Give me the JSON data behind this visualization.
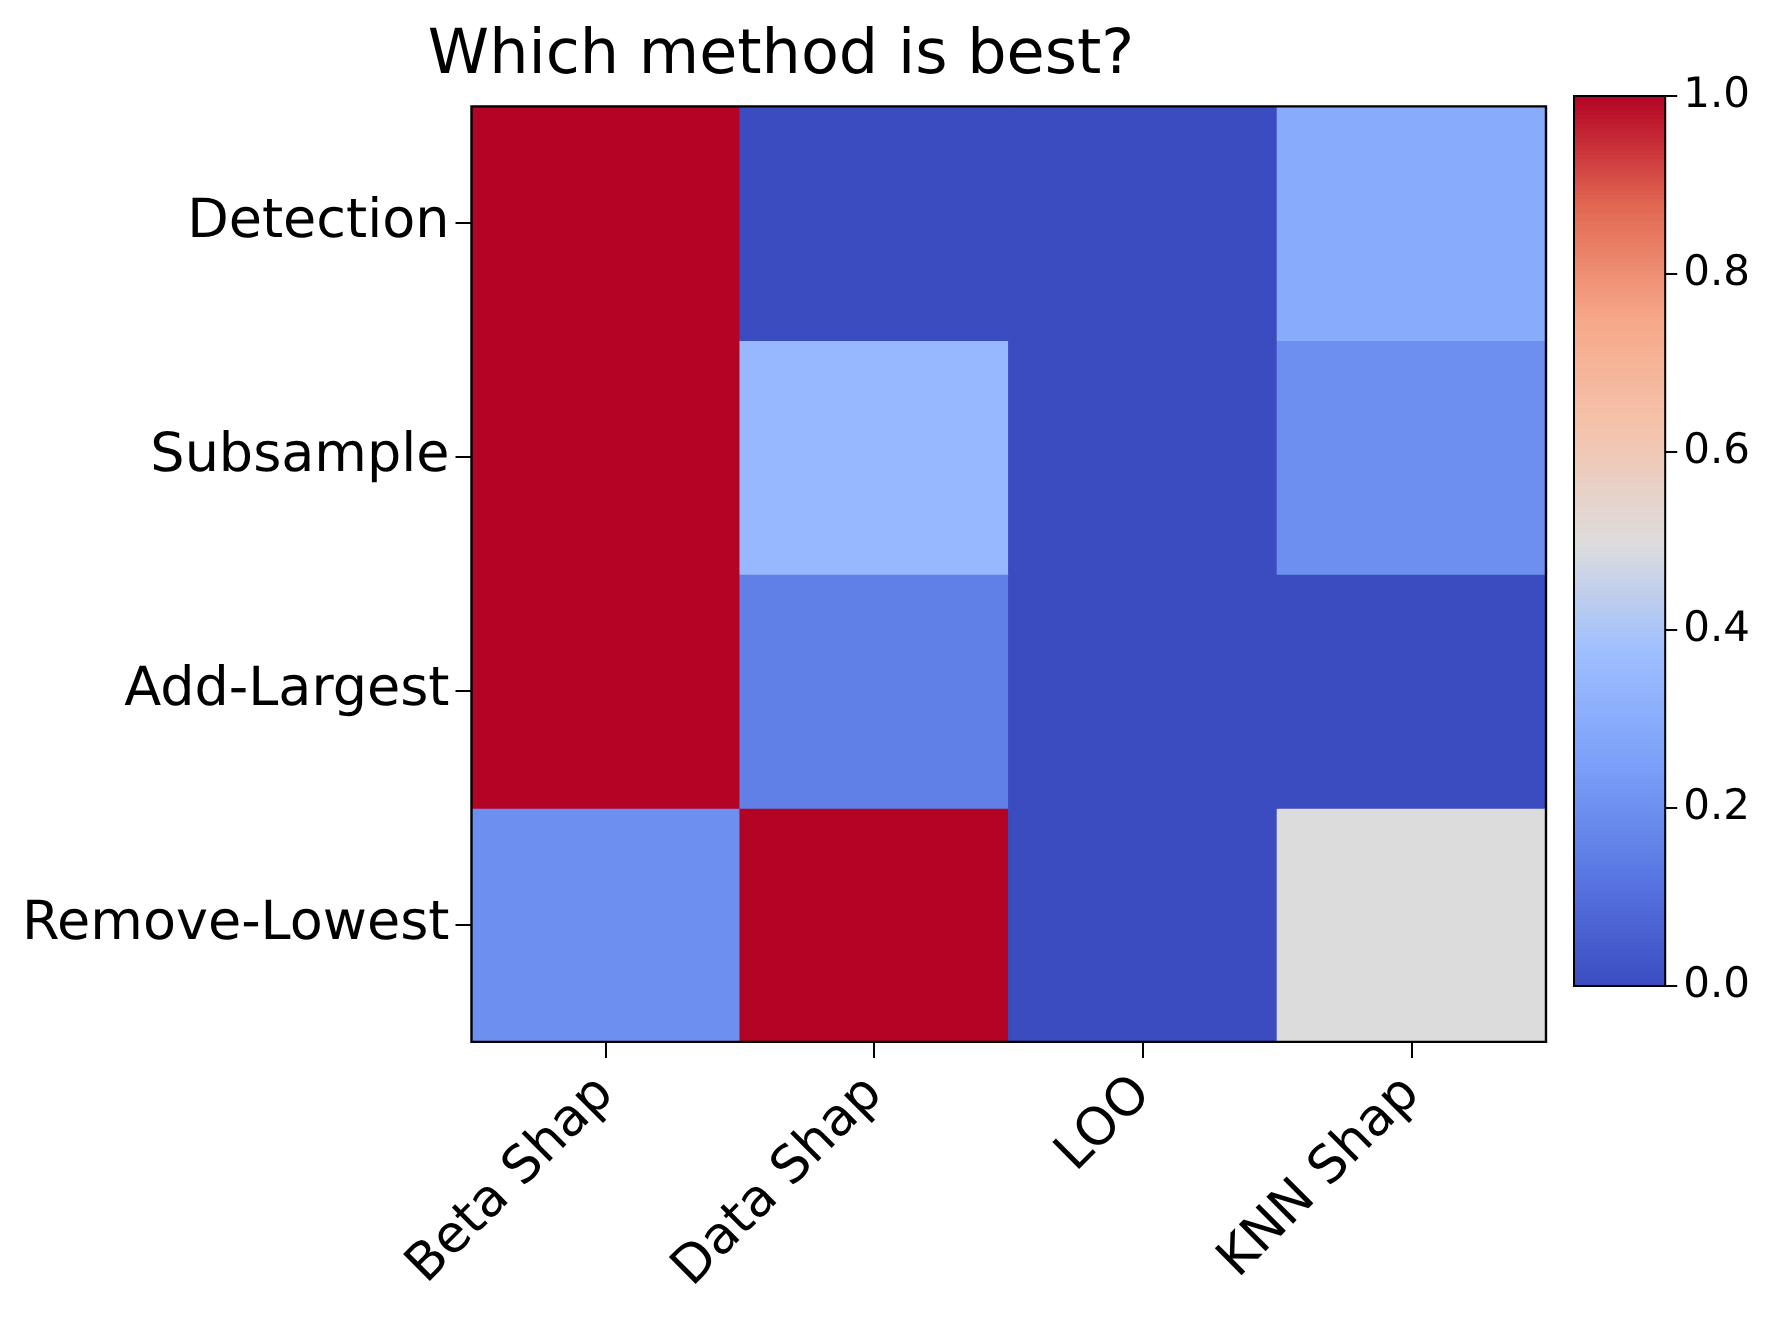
{
  "chart_data": {
    "type": "heatmap",
    "title": "Which method is best?",
    "categories": [
      "Beta Shap",
      "Data Shap",
      "LOO",
      "KNN Shap"
    ],
    "y_categories": [
      "Detection",
      "Subsample",
      "Add-Largest",
      "Remove-Lowest"
    ],
    "cells": [
      [
        1.0,
        0.0,
        0.0,
        0.3
      ],
      [
        1.0,
        0.35,
        0.0,
        0.2
      ],
      [
        1.0,
        0.15,
        0.0,
        0.0
      ],
      [
        0.2,
        1.0,
        0.0,
        0.5
      ]
    ],
    "clim": [
      0,
      1
    ],
    "cticks": [
      {
        "value": 0,
        "label": "0.0"
      },
      0.2,
      0.4,
      0.6,
      0.8,
      {
        "value": 1,
        "label": "1.0"
      }
    ]
  }
}
